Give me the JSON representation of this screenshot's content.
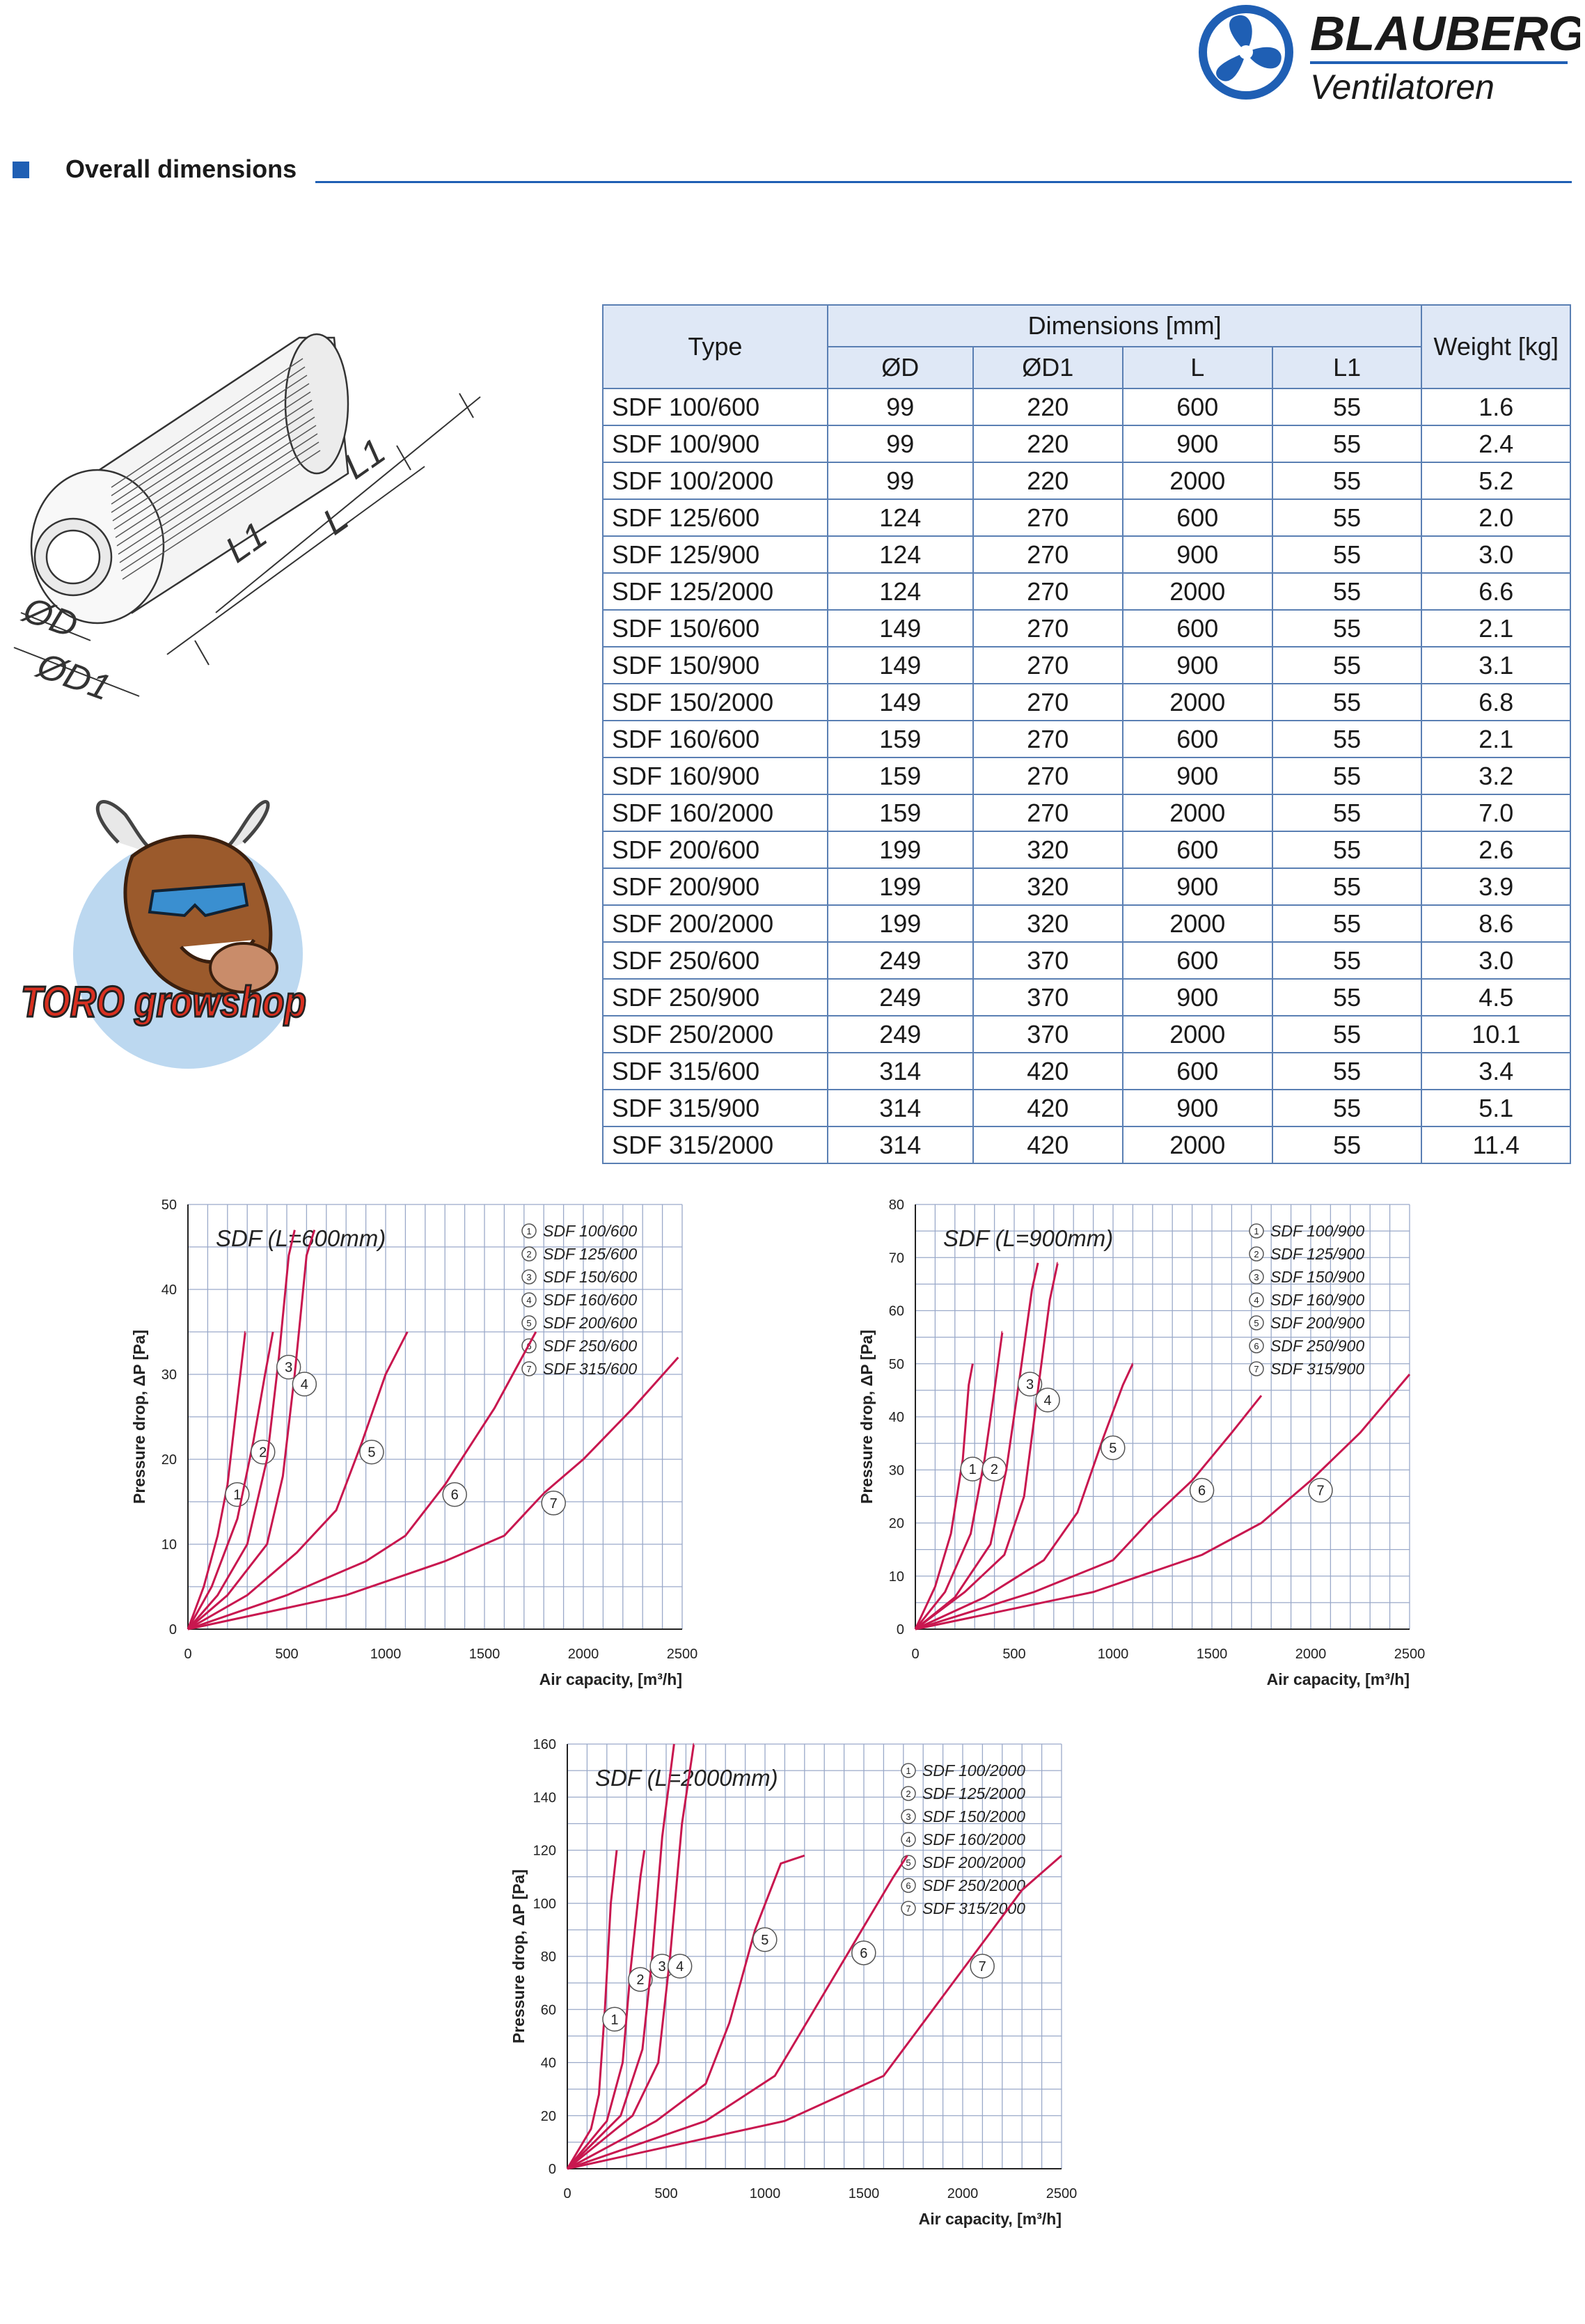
{
  "brand": {
    "name": "BLAUBERG",
    "tagline": "Ventilatoren",
    "colors": {
      "primary": "#1f5fb4",
      "curve": "#c8174f"
    }
  },
  "section": {
    "title": "Overall dimensions"
  },
  "drawing": {
    "labels": [
      "L1",
      "L1",
      "L",
      "ØD",
      "ØD1"
    ]
  },
  "mascot": {
    "logo_text": "TORO growshop"
  },
  "table": {
    "headers": {
      "type": "Type",
      "dimensions": "Dimensions [mm]",
      "d": "ØD",
      "d1": "ØD1",
      "l": "L",
      "l1": "L1",
      "weight": "Weight [kg]"
    },
    "rows": [
      [
        "SDF 100/600",
        "99",
        "220",
        "600",
        "55",
        "1.6"
      ],
      [
        "SDF 100/900",
        "99",
        "220",
        "900",
        "55",
        "2.4"
      ],
      [
        "SDF 100/2000",
        "99",
        "220",
        "2000",
        "55",
        "5.2"
      ],
      [
        "SDF 125/600",
        "124",
        "270",
        "600",
        "55",
        "2.0"
      ],
      [
        "SDF 125/900",
        "124",
        "270",
        "900",
        "55",
        "3.0"
      ],
      [
        "SDF 125/2000",
        "124",
        "270",
        "2000",
        "55",
        "6.6"
      ],
      [
        "SDF 150/600",
        "149",
        "270",
        "600",
        "55",
        "2.1"
      ],
      [
        "SDF 150/900",
        "149",
        "270",
        "900",
        "55",
        "3.1"
      ],
      [
        "SDF 150/2000",
        "149",
        "270",
        "2000",
        "55",
        "6.8"
      ],
      [
        "SDF 160/600",
        "159",
        "270",
        "600",
        "55",
        "2.1"
      ],
      [
        "SDF 160/900",
        "159",
        "270",
        "900",
        "55",
        "3.2"
      ],
      [
        "SDF 160/2000",
        "159",
        "270",
        "2000",
        "55",
        "7.0"
      ],
      [
        "SDF 200/600",
        "199",
        "320",
        "600",
        "55",
        "2.6"
      ],
      [
        "SDF 200/900",
        "199",
        "320",
        "900",
        "55",
        "3.9"
      ],
      [
        "SDF 200/2000",
        "199",
        "320",
        "2000",
        "55",
        "8.6"
      ],
      [
        "SDF 250/600",
        "249",
        "370",
        "600",
        "55",
        "3.0"
      ],
      [
        "SDF 250/900",
        "249",
        "370",
        "900",
        "55",
        "4.5"
      ],
      [
        "SDF 250/2000",
        "249",
        "370",
        "2000",
        "55",
        "10.1"
      ],
      [
        "SDF 315/600",
        "314",
        "420",
        "600",
        "55",
        "3.4"
      ],
      [
        "SDF 315/900",
        "314",
        "420",
        "900",
        "55",
        "5.1"
      ],
      [
        "SDF 315/2000",
        "314",
        "420",
        "2000",
        "55",
        "11.4"
      ]
    ]
  },
  "chart_data": [
    {
      "type": "line",
      "title": "SDF (L=600mm)",
      "xlabel": "Air capacity, [m³/h]",
      "ylabel": "Pressure drop, ΔP [Pa]",
      "xlim": [
        0,
        2500
      ],
      "ylim": [
        0,
        50
      ],
      "xticks": [
        0,
        500,
        1000,
        1500,
        2000,
        2500
      ],
      "yticks": [
        0,
        10,
        20,
        30,
        40,
        50
      ],
      "legend_position": "top-right",
      "grid": true,
      "series": [
        {
          "name": "SDF 100/600",
          "label": "1",
          "points": [
            [
              0,
              0
            ],
            [
              80,
              5
            ],
            [
              150,
              11
            ],
            [
              200,
              17
            ],
            [
              250,
              27
            ],
            [
              290,
              35
            ]
          ]
        },
        {
          "name": "SDF 125/600",
          "label": "2",
          "points": [
            [
              0,
              0
            ],
            [
              120,
              5
            ],
            [
              250,
              13
            ],
            [
              330,
              22
            ],
            [
              390,
              30
            ],
            [
              430,
              35
            ]
          ]
        },
        {
          "name": "SDF 150/600",
          "label": "3",
          "points": [
            [
              0,
              0
            ],
            [
              150,
              4
            ],
            [
              300,
              10
            ],
            [
              400,
              20
            ],
            [
              460,
              32
            ],
            [
              510,
              44
            ],
            [
              540,
              47
            ]
          ]
        },
        {
          "name": "SDF 160/600",
          "label": "4",
          "points": [
            [
              0,
              0
            ],
            [
              200,
              4
            ],
            [
              400,
              10
            ],
            [
              480,
              18
            ],
            [
              540,
              30
            ],
            [
              600,
              44
            ],
            [
              640,
              47
            ]
          ]
        },
        {
          "name": "SDF 200/600",
          "label": "5",
          "points": [
            [
              0,
              0
            ],
            [
              300,
              4
            ],
            [
              550,
              9
            ],
            [
              750,
              14
            ],
            [
              880,
              22
            ],
            [
              1000,
              30
            ],
            [
              1110,
              35
            ]
          ]
        },
        {
          "name": "SDF 250/600",
          "label": "6",
          "points": [
            [
              0,
              0
            ],
            [
              500,
              4
            ],
            [
              900,
              8
            ],
            [
              1100,
              11
            ],
            [
              1300,
              17
            ],
            [
              1550,
              26
            ],
            [
              1760,
              35
            ]
          ]
        },
        {
          "name": "SDF 315/600",
          "label": "7",
          "points": [
            [
              0,
              0
            ],
            [
              800,
              4
            ],
            [
              1300,
              8
            ],
            [
              1600,
              11
            ],
            [
              1800,
              16
            ],
            [
              2000,
              20
            ],
            [
              2250,
              26
            ],
            [
              2480,
              32
            ]
          ]
        }
      ]
    },
    {
      "type": "line",
      "title": "SDF (L=900mm)",
      "xlabel": "Air capacity, [m³/h]",
      "ylabel": "Pressure drop, ΔP [Pa]",
      "xlim": [
        0,
        2500
      ],
      "ylim": [
        0,
        80
      ],
      "xticks": [
        0,
        500,
        1000,
        1500,
        2000,
        2500
      ],
      "yticks": [
        0,
        10,
        20,
        30,
        40,
        50,
        60,
        70,
        80
      ],
      "legend_position": "top-right",
      "grid": true,
      "series": [
        {
          "name": "SDF 100/900",
          "label": "1",
          "points": [
            [
              0,
              0
            ],
            [
              100,
              8
            ],
            [
              180,
              18
            ],
            [
              240,
              32
            ],
            [
              270,
              46
            ],
            [
              290,
              50
            ]
          ]
        },
        {
          "name": "SDF 125/900",
          "label": "2",
          "points": [
            [
              0,
              0
            ],
            [
              150,
              7
            ],
            [
              280,
              18
            ],
            [
              350,
              32
            ],
            [
              400,
              45
            ],
            [
              440,
              56
            ]
          ]
        },
        {
          "name": "SDF 150/900",
          "label": "3",
          "points": [
            [
              0,
              0
            ],
            [
              200,
              6
            ],
            [
              380,
              16
            ],
            [
              460,
              30
            ],
            [
              530,
              48
            ],
            [
              590,
              64
            ],
            [
              620,
              69
            ]
          ]
        },
        {
          "name": "SDF 160/900",
          "label": "4",
          "points": [
            [
              0,
              0
            ],
            [
              250,
              7
            ],
            [
              450,
              14
            ],
            [
              550,
              25
            ],
            [
              620,
              45
            ],
            [
              680,
              62
            ],
            [
              720,
              69
            ]
          ]
        },
        {
          "name": "SDF 200/900",
          "label": "5",
          "points": [
            [
              0,
              0
            ],
            [
              350,
              6
            ],
            [
              650,
              13
            ],
            [
              820,
              22
            ],
            [
              950,
              36
            ],
            [
              1050,
              46
            ],
            [
              1100,
              50
            ]
          ]
        },
        {
          "name": "SDF 250/900",
          "label": "6",
          "points": [
            [
              0,
              0
            ],
            [
              600,
              7
            ],
            [
              1000,
              13
            ],
            [
              1200,
              21
            ],
            [
              1400,
              28
            ],
            [
              1600,
              37
            ],
            [
              1750,
              44
            ]
          ]
        },
        {
          "name": "SDF 315/900",
          "label": "7",
          "points": [
            [
              0,
              0
            ],
            [
              900,
              7
            ],
            [
              1450,
              14
            ],
            [
              1750,
              20
            ],
            [
              2000,
              28
            ],
            [
              2250,
              37
            ],
            [
              2500,
              48
            ]
          ]
        }
      ]
    },
    {
      "type": "line",
      "title": "SDF (L=2000mm)",
      "xlabel": "Air capacity, [m³/h]",
      "ylabel": "Pressure drop, ΔP [Pa]",
      "xlim": [
        0,
        2500
      ],
      "ylim": [
        0,
        160
      ],
      "xticks": [
        0,
        500,
        1000,
        1500,
        2000,
        2500
      ],
      "yticks": [
        0,
        20,
        40,
        60,
        80,
        100,
        120,
        140,
        160
      ],
      "legend_position": "top-right",
      "grid": true,
      "series": [
        {
          "name": "SDF 100/2000",
          "label": "1",
          "points": [
            [
              0,
              0
            ],
            [
              120,
              15
            ],
            [
              160,
              28
            ],
            [
              190,
              60
            ],
            [
              220,
              100
            ],
            [
              250,
              120
            ]
          ]
        },
        {
          "name": "SDF 125/2000",
          "label": "2",
          "points": [
            [
              0,
              0
            ],
            [
              200,
              18
            ],
            [
              280,
              40
            ],
            [
              320,
              75
            ],
            [
              370,
              110
            ],
            [
              390,
              120
            ]
          ]
        },
        {
          "name": "SDF 150/2000",
          "label": "3",
          "points": [
            [
              0,
              0
            ],
            [
              270,
              20
            ],
            [
              380,
              45
            ],
            [
              430,
              80
            ],
            [
              480,
              125
            ],
            [
              540,
              160
            ]
          ]
        },
        {
          "name": "SDF 160/2000",
          "label": "4",
          "points": [
            [
              0,
              0
            ],
            [
              330,
              20
            ],
            [
              460,
              40
            ],
            [
              520,
              80
            ],
            [
              580,
              130
            ],
            [
              640,
              160
            ]
          ]
        },
        {
          "name": "SDF 200/2000",
          "label": "5",
          "points": [
            [
              0,
              0
            ],
            [
              450,
              18
            ],
            [
              700,
              32
            ],
            [
              820,
              55
            ],
            [
              950,
              90
            ],
            [
              1080,
              115
            ],
            [
              1200,
              118
            ]
          ]
        },
        {
          "name": "SDF 250/2000",
          "label": "6",
          "points": [
            [
              0,
              0
            ],
            [
              700,
              18
            ],
            [
              1050,
              35
            ],
            [
              1250,
              60
            ],
            [
              1450,
              85
            ],
            [
              1650,
              110
            ],
            [
              1720,
              118
            ]
          ]
        },
        {
          "name": "SDF 315/2000",
          "label": "7",
          "points": [
            [
              0,
              0
            ],
            [
              1100,
              18
            ],
            [
              1600,
              35
            ],
            [
              1800,
              55
            ],
            [
              2050,
              80
            ],
            [
              2300,
              105
            ],
            [
              2500,
              118
            ]
          ]
        }
      ]
    }
  ]
}
